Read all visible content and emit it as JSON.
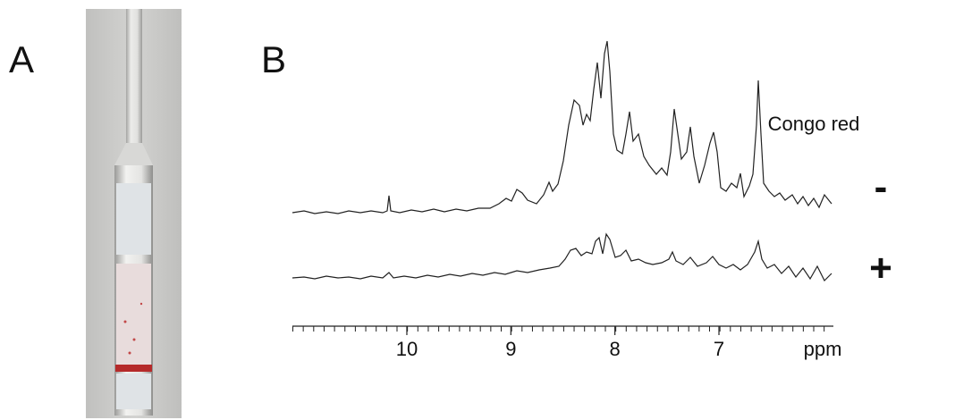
{
  "panels": {
    "photo_label": "A",
    "spectra_label": "B"
  },
  "spectra_axis": {
    "xlim": [
      11.1,
      5.9
    ],
    "xticks": [
      10,
      9,
      8,
      7
    ],
    "label": "ppm"
  },
  "legend": {
    "title": "Congo red",
    "rows": [
      "-",
      "+"
    ]
  }
}
